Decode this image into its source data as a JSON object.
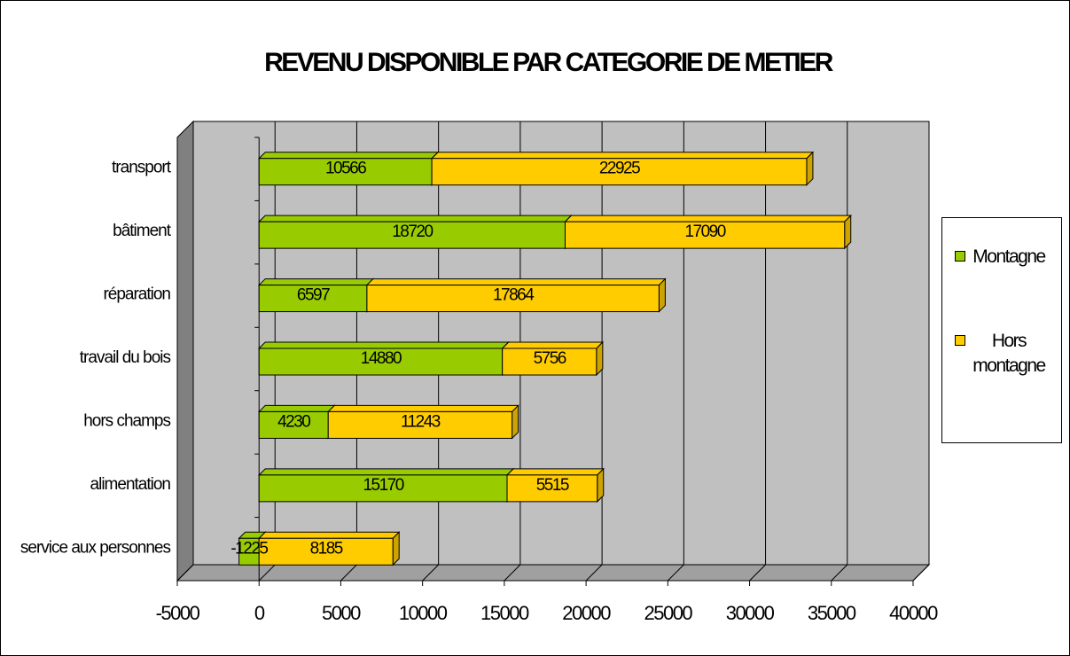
{
  "chart_data": {
    "type": "bar",
    "orientation": "horizontal",
    "stacked": true,
    "title": "REVENU DISPONIBLE PAR CATEGORIE DE METIER",
    "categories": [
      "transport",
      "bâtiment",
      "réparation",
      "travail du bois",
      "hors champs",
      "alimentation",
      "service aux personnes"
    ],
    "series": [
      {
        "name": "Montagne",
        "color": "#99cc00",
        "values": [
          10566,
          18720,
          6597,
          14880,
          4230,
          15170,
          -1225
        ]
      },
      {
        "name": "Hors montagne",
        "color": "#ffcc00",
        "values": [
          22925,
          17090,
          17864,
          5756,
          11243,
          5515,
          8185
        ]
      }
    ],
    "xlim": [
      -5000,
      40000
    ],
    "xticks": [
      -5000,
      0,
      5000,
      10000,
      15000,
      20000,
      25000,
      30000,
      35000,
      40000
    ],
    "grid": true,
    "legend": "right"
  }
}
